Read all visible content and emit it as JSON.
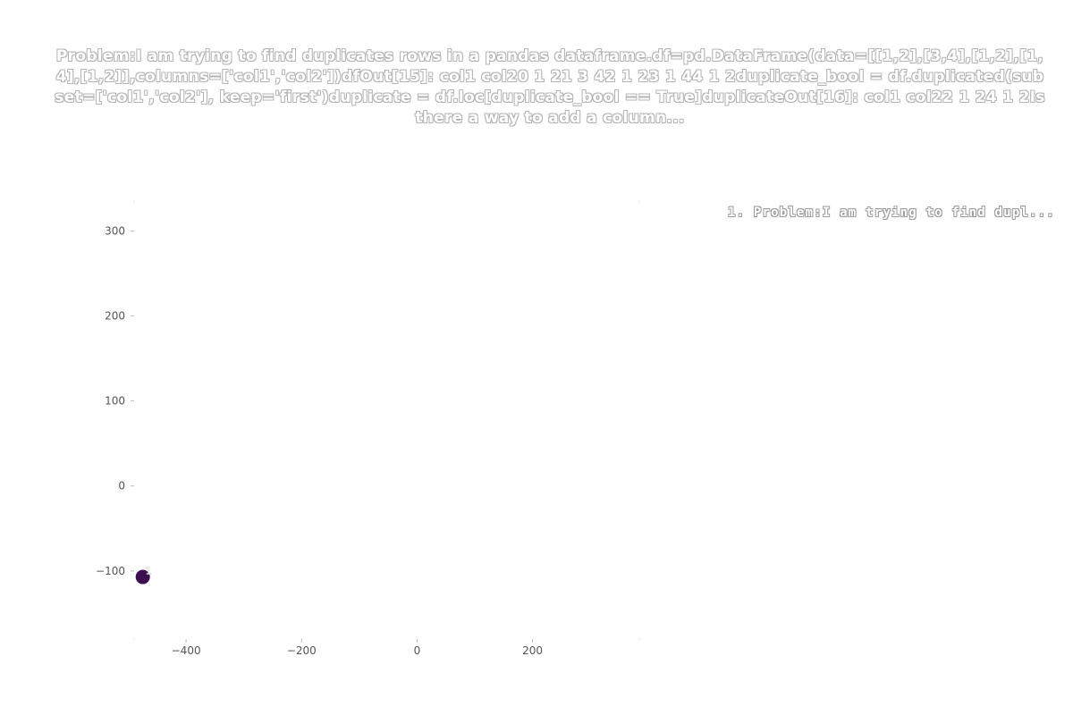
{
  "chart_data": {
    "type": "scatter",
    "title": "Problem:I am trying to find duplicates rows in a pandas dataframe.df=pd.DataFrame(data=[[1,2],[3,4],[1,2],[1,4],[1,2]],columns=['col1','col2'])dfOut[15]: col1 col20 1 21 3 42 1 23 1 44 1 2duplicate_bool = df.duplicated(subset=['col1','col2'], keep='first')duplicate = df.loc[duplicate_bool == True]duplicateOut[16]: col1 col22 1 24 1 2Is there a way to add a column...",
    "xlabel": "",
    "ylabel": "",
    "xlim": [
      -490,
      385
    ],
    "ylim": [
      -180,
      335
    ],
    "x_ticks": [
      -400,
      -200,
      0,
      200
    ],
    "y_ticks": [
      300,
      200,
      100,
      0,
      -100
    ],
    "x_tick_labels": [
      "−400",
      "−200",
      "0",
      "200"
    ],
    "y_tick_labels": [
      "300",
      "200",
      "100",
      "0",
      "−100"
    ],
    "grid": false,
    "legend_position": "top-right",
    "legend": [
      "1. Problem:I am trying to find dupl..."
    ],
    "points": [
      {
        "x": -475,
        "y": -107,
        "label": "1",
        "color": "#3b0f4f"
      }
    ]
  }
}
